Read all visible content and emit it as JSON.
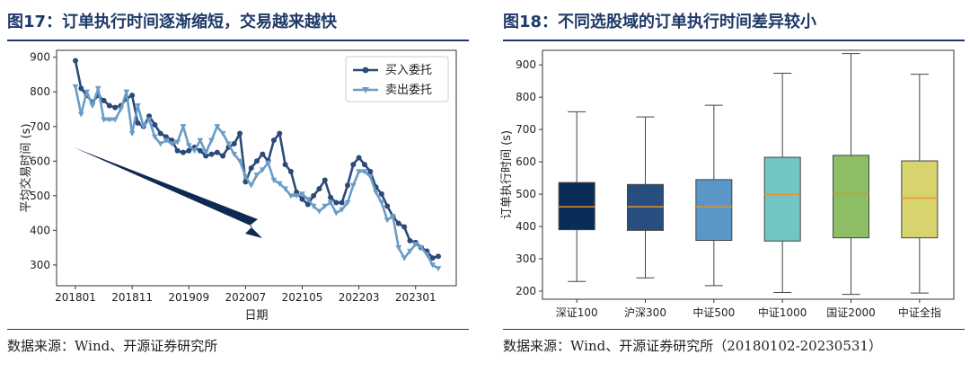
{
  "left": {
    "title": "图17：订单执行时间逐渐缩短，交易越来越快",
    "source": "数据来源：Wind、开源证券研究所"
  },
  "right": {
    "title": "图18：不同选股域的订单执行时间差异较小",
    "source": "数据来源：Wind、开源证券研究所（20180102-20230531）"
  },
  "colors": {
    "buy": "#2b4a78",
    "sell": "#6a9cc6",
    "arrow": "#0f2a52",
    "median": "#e8902a",
    "title": "#1f3a68"
  },
  "chart_data": [
    {
      "type": "line",
      "xlabel": "日期",
      "ylabel": "平均交易时间 (s)",
      "ylim": [
        240,
        920
      ],
      "yticks": [
        300,
        400,
        500,
        600,
        700,
        800,
        900
      ],
      "xtick_labels": [
        "201801",
        "201811",
        "201909",
        "202007",
        "202105",
        "202203",
        "202301"
      ],
      "xtick_index": [
        0,
        10,
        20,
        30,
        40,
        50,
        60
      ],
      "x_count": 65,
      "legend_position": "top-right",
      "annotation": "downward-arrow",
      "series": [
        {
          "name": "买入委托",
          "marker": "circle",
          "values": [
            890,
            810,
            790,
            770,
            790,
            775,
            760,
            755,
            760,
            780,
            790,
            710,
            700,
            730,
            705,
            680,
            670,
            660,
            630,
            625,
            630,
            640,
            630,
            615,
            620,
            625,
            615,
            640,
            650,
            680,
            540,
            580,
            600,
            620,
            600,
            660,
            680,
            590,
            570,
            510,
            490,
            475,
            500,
            520,
            545,
            495,
            480,
            480,
            530,
            590,
            610,
            590,
            570,
            525,
            505,
            470,
            440,
            420,
            410,
            370,
            365,
            350,
            340,
            320,
            325
          ]
        },
        {
          "name": "卖出委托",
          "marker": "triangle-down",
          "values": [
            815,
            735,
            800,
            760,
            810,
            720,
            720,
            720,
            750,
            800,
            680,
            760,
            700,
            720,
            670,
            650,
            660,
            650,
            655,
            700,
            645,
            630,
            660,
            625,
            660,
            700,
            680,
            650,
            620,
            600,
            555,
            530,
            560,
            575,
            595,
            545,
            535,
            520,
            500,
            500,
            505,
            490,
            470,
            455,
            470,
            480,
            450,
            460,
            480,
            530,
            570,
            570,
            555,
            510,
            480,
            430,
            440,
            350,
            320,
            340,
            360,
            350,
            330,
            300,
            290
          ]
        }
      ]
    },
    {
      "type": "box",
      "ylabel": "订单执行时间 (s)",
      "ylim": [
        175,
        945
      ],
      "yticks": [
        200,
        300,
        400,
        500,
        600,
        700,
        800,
        900
      ],
      "categories": [
        "深证100",
        "沪深300",
        "中证500",
        "中证1000",
        "国证2000",
        "中证全指"
      ],
      "colors": [
        "#082e57",
        "#264f80",
        "#5a96c6",
        "#71c5c2",
        "#8cbe65",
        "#d7d36f"
      ],
      "boxes": [
        {
          "min": 230,
          "q1": 390,
          "median": 461,
          "q3": 536,
          "max": 755
        },
        {
          "min": 241,
          "q1": 388,
          "median": 461,
          "q3": 530,
          "max": 739
        },
        {
          "min": 217,
          "q1": 357,
          "median": 461,
          "q3": 545,
          "max": 775
        },
        {
          "min": 196,
          "q1": 355,
          "median": 499,
          "q3": 614,
          "max": 874
        },
        {
          "min": 190,
          "q1": 365,
          "median": 502,
          "q3": 620,
          "max": 935
        },
        {
          "min": 194,
          "q1": 365,
          "median": 488,
          "q3": 603,
          "max": 871
        }
      ]
    }
  ]
}
